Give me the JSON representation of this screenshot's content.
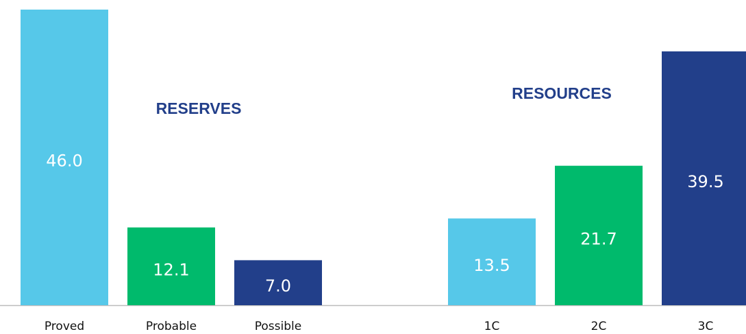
{
  "chart_data": {
    "type": "bar",
    "groups": [
      {
        "name": "RESERVES",
        "categories": [
          "Proved",
          "Probable",
          "Possible"
        ],
        "values": [
          46.0,
          12.1,
          7.0
        ],
        "value_labels": [
          "46.0",
          "12.1",
          "7.0"
        ]
      },
      {
        "name": "RESOURCES",
        "categories": [
          "1C",
          "2C",
          "3C"
        ],
        "values": [
          13.5,
          21.7,
          39.5
        ],
        "value_labels": [
          "13.5",
          "21.7",
          "39.5"
        ]
      }
    ],
    "colors": [
      "#56c8e9",
      "#00ba6c",
      "#223f8a"
    ]
  }
}
